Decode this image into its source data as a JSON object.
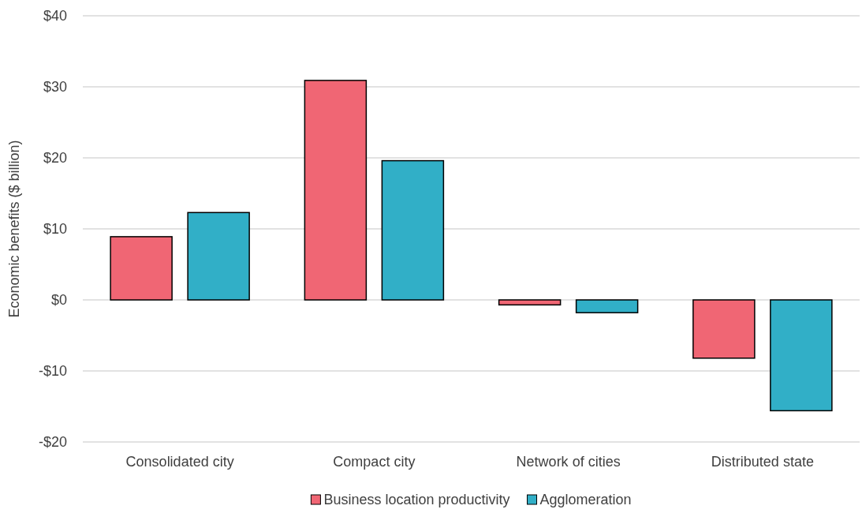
{
  "chart_data": {
    "type": "bar",
    "ylabel": "Economic benefits ($ billion)",
    "categories": [
      "Consolidated city",
      "Compact city",
      "Network of cities",
      "Distributed state"
    ],
    "series": [
      {
        "name": "Business location productivity",
        "color": "#f06674",
        "values": [
          8.9,
          30.9,
          -0.7,
          -8.2
        ]
      },
      {
        "name": "Agglomeration",
        "color": "#31afc7",
        "values": [
          12.3,
          19.6,
          -1.8,
          -15.6
        ]
      }
    ],
    "ylim": [
      -20,
      40
    ],
    "yticks": [
      {
        "value": -20,
        "label": "-$20"
      },
      {
        "value": -10,
        "label": "-$10"
      },
      {
        "value": 0,
        "label": "$0"
      },
      {
        "value": 10,
        "label": "$10"
      },
      {
        "value": 20,
        "label": "$20"
      },
      {
        "value": 30,
        "label": "$30"
      },
      {
        "value": 40,
        "label": "$40"
      }
    ],
    "grid": "y",
    "legend": "bottom"
  }
}
